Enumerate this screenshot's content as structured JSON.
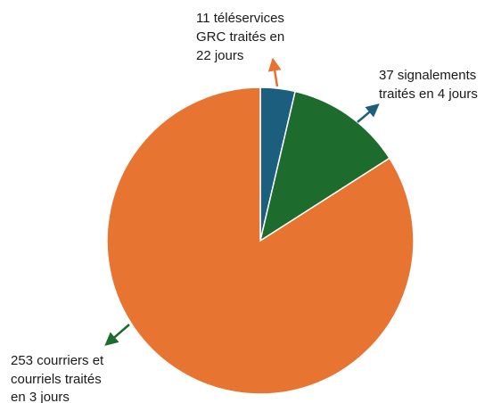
{
  "chart_data": {
    "type": "pie",
    "slices": [
      {
        "label_lines": [
          "11 téléservices",
          "GRC traités en",
          "22 jours"
        ],
        "value": 11,
        "color": "#1b5e7e",
        "arrow_color": "#e8732f"
      },
      {
        "label_lines": [
          "37 signalements",
          "traités en 4 jours"
        ],
        "value": 37,
        "color": "#1d6b2d",
        "arrow_color": "#1b5e7e"
      },
      {
        "label_lines": [
          "253 courriers et",
          "courriels traités",
          "en 3 jours"
        ],
        "value": 253,
        "color": "#e87432",
        "arrow_color": "#1d6b2d"
      }
    ],
    "start_position": "top",
    "direction": "clockwise"
  }
}
